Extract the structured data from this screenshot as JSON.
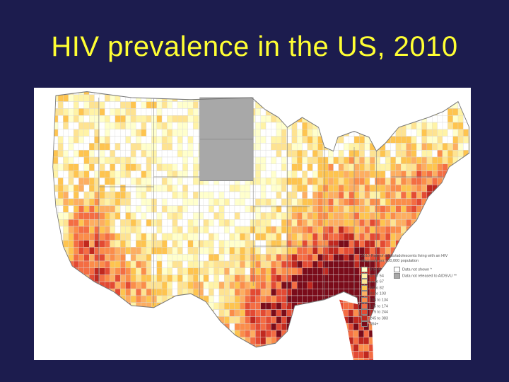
{
  "slide": {
    "title": "HIV prevalence in the US, 2010"
  },
  "map": {
    "legend_title_line1": "2010 Rate of adults/adolescents living with an HIV",
    "legend_title_line2": "diagnosis per 100,000 population",
    "rate_classes": [
      {
        "label": "0 to 40",
        "color": "#ffffcc"
      },
      {
        "label": "41 to 54",
        "color": "#fff3a6"
      },
      {
        "label": "55 to 67",
        "color": "#fee391"
      },
      {
        "label": "68 to 82",
        "color": "#fec44f"
      },
      {
        "label": "83 to 103",
        "color": "#fdae61"
      },
      {
        "label": "104 to 134",
        "color": "#fb8d4a"
      },
      {
        "label": "135 to 174",
        "color": "#f46d43"
      },
      {
        "label": "175 to 244",
        "color": "#e34a33"
      },
      {
        "label": "245 to 383",
        "color": "#c0281f"
      },
      {
        "label": "384+",
        "color": "#7a0c1a"
      }
    ],
    "other_classes": [
      {
        "label": "Data not shown *",
        "color": "#ffffff"
      },
      {
        "label": "Data not released to AIDSVU **",
        "color": "#a8a8a8"
      }
    ],
    "no_data_state": "Dakotas (not released)"
  }
}
